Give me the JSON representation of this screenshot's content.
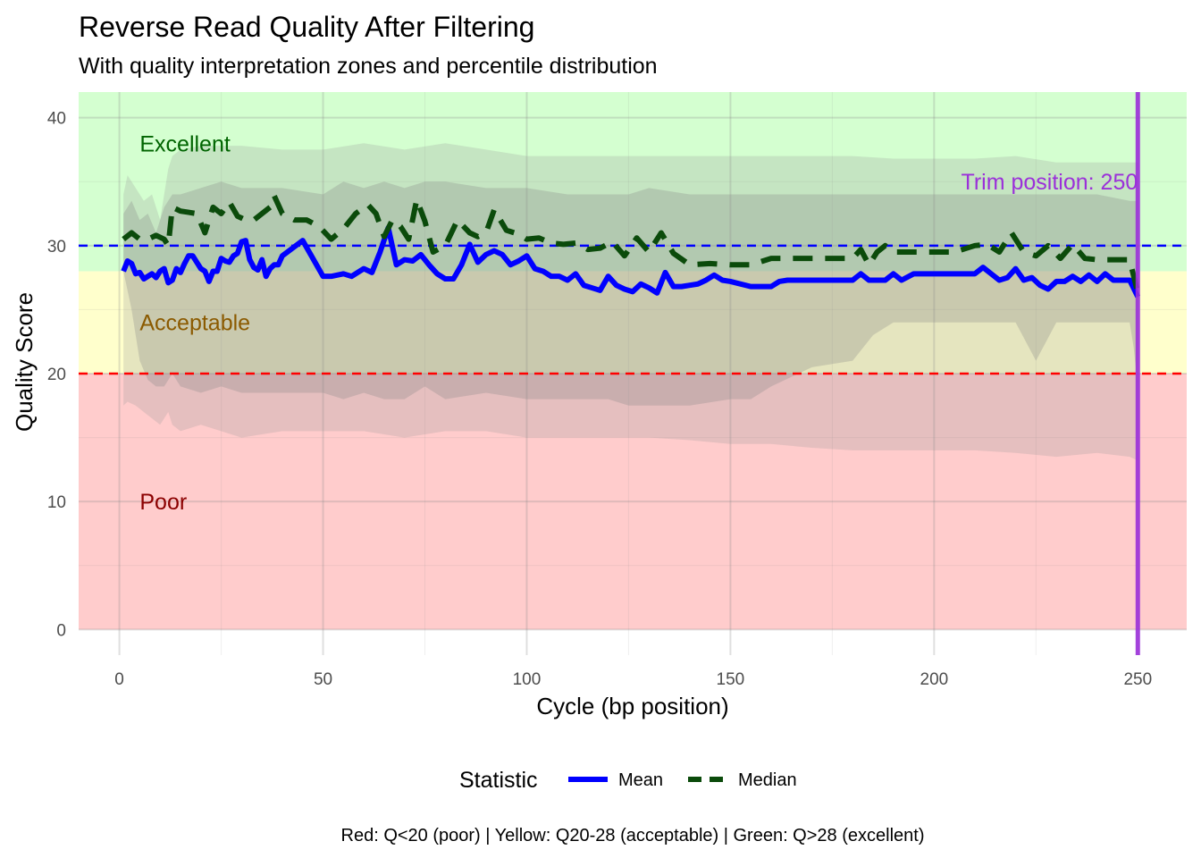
{
  "chart_data": {
    "type": "line",
    "title": "Reverse Read Quality After Filtering",
    "subtitle": "With quality interpretation zones and percentile distribution",
    "xlabel": "Cycle (bp position)",
    "ylabel": "Quality Score",
    "xlim": [
      -10,
      262
    ],
    "ylim": [
      -2,
      42
    ],
    "x_ticks": [
      0,
      50,
      100,
      150,
      200,
      250
    ],
    "y_ticks": [
      0,
      10,
      20,
      30,
      40
    ],
    "grid": true,
    "legend": {
      "title": "Statistic",
      "position": "bottom",
      "entries": [
        {
          "label": "Mean",
          "color": "#0000ff",
          "style": "solid"
        },
        {
          "label": "Median",
          "color": "#0b4b0b",
          "style": "dashed"
        }
      ]
    },
    "caption": "Red: Q<20 (poor) | Yellow: Q20-28 (acceptable) | Green: Q>28 (excellent)",
    "zones": [
      {
        "label": "Poor",
        "from": 0,
        "to": 20,
        "color": "#ffcccc",
        "text_color": "#8b0000",
        "label_y": 10
      },
      {
        "label": "Acceptable",
        "from": 20,
        "to": 28,
        "color": "#ffffcc",
        "text_color": "#8b5a00",
        "label_y": 24
      },
      {
        "label": "Excellent",
        "from": 28,
        "to": 42,
        "color": "#d4ffd0",
        "text_color": "#006400",
        "label_y": 38
      }
    ],
    "reference_lines": [
      {
        "y": 20,
        "color": "#ff0000",
        "style": "dashed"
      },
      {
        "y": 30,
        "color": "#0000ff",
        "style": "dashed"
      }
    ],
    "trim": {
      "x": 250,
      "label": "Trim position: 250",
      "label_y": 35,
      "color": "#9b30d9"
    },
    "bands": [
      {
        "name": "outer percentile band",
        "color": "#999999",
        "opacity": 0.25,
        "x": [
          1,
          2,
          4,
          6,
          8,
          10,
          12,
          13,
          15,
          20,
          30,
          40,
          50,
          60,
          70,
          80,
          90,
          100,
          110,
          120,
          130,
          140,
          150,
          160,
          170,
          180,
          190,
          200,
          210,
          220,
          230,
          240,
          248,
          250
        ],
        "lower": [
          17.5,
          17.8,
          17.5,
          17.0,
          16.5,
          16.0,
          17.0,
          16.0,
          15.5,
          16.0,
          15.0,
          15.5,
          15.5,
          15.5,
          15.0,
          15.5,
          15.5,
          15.0,
          15.0,
          15.0,
          15.0,
          14.8,
          14.5,
          14.5,
          14.2,
          14.0,
          14.0,
          14.0,
          14.0,
          13.8,
          13.5,
          13.8,
          13.5,
          13.2
        ],
        "upper": [
          34.0,
          35.5,
          34.5,
          33.5,
          34.0,
          32.0,
          36.0,
          37.0,
          37.5,
          37.8,
          37.8,
          37.5,
          37.5,
          38.0,
          37.5,
          38.0,
          37.5,
          37.0,
          37.0,
          37.0,
          37.0,
          37.0,
          37.0,
          37.0,
          37.0,
          37.0,
          36.8,
          36.8,
          36.8,
          37.0,
          36.5,
          36.5,
          36.5,
          36.5
        ]
      },
      {
        "name": "inner percentile band",
        "color": "#888888",
        "opacity": 0.3,
        "x": [
          1,
          3,
          5,
          7,
          9,
          11,
          13,
          15,
          20,
          25,
          30,
          40,
          50,
          55,
          60,
          65,
          70,
          75,
          80,
          90,
          100,
          110,
          120,
          125,
          130,
          140,
          150,
          155,
          160,
          170,
          180,
          185,
          190,
          200,
          210,
          220,
          225,
          230,
          240,
          248,
          249,
          250
        ],
        "lower": [
          28.0,
          25.0,
          21.0,
          19.5,
          19.0,
          19.0,
          20.0,
          19.0,
          18.5,
          19.0,
          18.5,
          18.5,
          18.5,
          18.0,
          18.5,
          18.0,
          18.0,
          19.0,
          18.0,
          18.5,
          18.0,
          18.0,
          18.0,
          17.5,
          17.5,
          17.5,
          18.0,
          18.0,
          19.0,
          20.5,
          21.0,
          23.0,
          24.0,
          24.0,
          24.0,
          24.0,
          21.0,
          24.0,
          24.0,
          24.0,
          22.0,
          19.0
        ],
        "upper": [
          32.5,
          33.5,
          32.0,
          32.5,
          31.0,
          33.0,
          34.0,
          34.0,
          34.5,
          35.0,
          34.5,
          34.5,
          34.0,
          35.0,
          34.5,
          35.0,
          34.5,
          35.0,
          35.0,
          34.5,
          34.5,
          34.0,
          34.0,
          34.0,
          34.5,
          34.0,
          34.0,
          34.0,
          34.0,
          34.0,
          34.0,
          34.0,
          34.0,
          34.0,
          34.0,
          34.0,
          34.0,
          34.0,
          34.0,
          33.5,
          33.5,
          33.5
        ]
      }
    ],
    "series": [
      {
        "name": "Mean",
        "color": "#0000ff",
        "style": "solid",
        "x": [
          1,
          2,
          3,
          4,
          5,
          6,
          7,
          8,
          9,
          10,
          11,
          12,
          13,
          14,
          15,
          16,
          17,
          18,
          19,
          20,
          21,
          22,
          23,
          24,
          25,
          26,
          27,
          28,
          29,
          30,
          31,
          32,
          33,
          34,
          35,
          36,
          37,
          38,
          39,
          40,
          45,
          50,
          52,
          55,
          57,
          60,
          62,
          64,
          66,
          68,
          70,
          72,
          74,
          76,
          78,
          80,
          82,
          84,
          86,
          88,
          90,
          92,
          94,
          96,
          98,
          100,
          102,
          104,
          106,
          108,
          110,
          112,
          114,
          116,
          118,
          120,
          122,
          124,
          126,
          128,
          130,
          132,
          134,
          136,
          138,
          140,
          142,
          144,
          146,
          148,
          150,
          155,
          160,
          162,
          164,
          170,
          175,
          180,
          182,
          184,
          186,
          188,
          190,
          192,
          195,
          200,
          205,
          210,
          212,
          214,
          216,
          218,
          220,
          222,
          224,
          226,
          228,
          230,
          232,
          234,
          236,
          238,
          240,
          242,
          244,
          246,
          248,
          250
        ],
        "y": [
          28.0,
          28.8,
          28.6,
          27.8,
          27.9,
          27.4,
          27.6,
          27.8,
          27.5,
          28.0,
          28.2,
          27.1,
          27.3,
          28.2,
          27.9,
          28.6,
          29.2,
          29.2,
          28.7,
          28.2,
          28.0,
          27.2,
          28.0,
          28.0,
          29.0,
          28.8,
          28.7,
          29.2,
          29.4,
          30.3,
          30.4,
          28.9,
          28.3,
          28.1,
          28.9,
          27.6,
          28.2,
          28.5,
          28.5,
          29.2,
          30.4,
          27.6,
          27.6,
          27.8,
          27.6,
          28.2,
          27.9,
          29.5,
          31.4,
          28.5,
          28.9,
          28.8,
          29.3,
          28.5,
          27.8,
          27.4,
          27.4,
          28.5,
          30.1,
          28.7,
          29.3,
          29.6,
          29.3,
          28.5,
          28.8,
          29.2,
          28.2,
          28.0,
          27.6,
          27.6,
          27.3,
          27.8,
          26.9,
          26.7,
          26.5,
          27.6,
          26.9,
          26.6,
          26.4,
          27.0,
          26.7,
          26.3,
          27.9,
          26.8,
          26.8,
          26.9,
          27.0,
          27.3,
          27.7,
          27.3,
          27.2,
          26.8,
          26.8,
          27.2,
          27.3,
          27.3,
          27.3,
          27.3,
          27.8,
          27.3,
          27.3,
          27.3,
          27.8,
          27.3,
          27.8,
          27.8,
          27.8,
          27.8,
          28.3,
          27.8,
          27.3,
          27.5,
          28.2,
          27.3,
          27.5,
          26.9,
          26.6,
          27.2,
          27.2,
          27.6,
          27.2,
          27.7,
          27.2,
          27.8,
          27.3,
          27.3,
          27.3,
          26.0
        ]
      },
      {
        "name": "Median",
        "color": "#0b4b0b",
        "style": "dashed",
        "x": [
          1,
          3,
          5,
          7,
          9,
          11,
          12,
          13,
          15,
          17,
          19,
          21,
          23,
          25,
          27,
          29,
          31,
          33,
          35,
          37,
          38,
          40,
          43,
          46,
          49,
          52,
          55,
          58,
          61,
          63,
          65,
          67,
          69,
          71,
          73,
          75,
          77,
          80,
          83,
          86,
          88,
          90,
          92,
          95,
          98,
          100,
          103,
          106,
          109,
          112,
          115,
          118,
          121,
          124,
          127,
          130,
          133,
          136,
          140,
          145,
          150,
          155,
          160,
          165,
          170,
          175,
          180,
          182,
          184,
          186,
          188,
          190,
          195,
          200,
          205,
          210,
          213,
          216,
          219,
          222,
          225,
          228,
          231,
          234,
          237,
          240,
          244,
          248,
          250
        ],
        "y": [
          30.5,
          31.0,
          30.5,
          30.5,
          30.8,
          30.5,
          30.0,
          33.0,
          32.7,
          32.6,
          32.5,
          31.0,
          33.0,
          32.5,
          33.4,
          32.3,
          32.0,
          32.0,
          32.5,
          33.0,
          33.9,
          32.5,
          32.0,
          32.0,
          31.5,
          30.5,
          31.3,
          32.5,
          33.2,
          32.5,
          30.7,
          32.0,
          31.5,
          30.5,
          33.6,
          31.9,
          29.5,
          30.0,
          32.0,
          31.0,
          30.7,
          31.0,
          32.8,
          31.2,
          30.9,
          30.5,
          30.6,
          30.2,
          30.1,
          30.2,
          29.7,
          29.8,
          30.3,
          29.2,
          30.6,
          29.5,
          31.0,
          29.4,
          28.5,
          28.6,
          28.5,
          28.5,
          29.0,
          29.0,
          29.0,
          29.0,
          29.0,
          29.7,
          28.5,
          29.5,
          30.0,
          29.5,
          29.5,
          29.5,
          29.5,
          30.0,
          30.1,
          29.5,
          31.0,
          29.5,
          29.2,
          30.0,
          29.0,
          30.1,
          29.0,
          28.9,
          28.9,
          28.9,
          26.3
        ]
      }
    ]
  }
}
